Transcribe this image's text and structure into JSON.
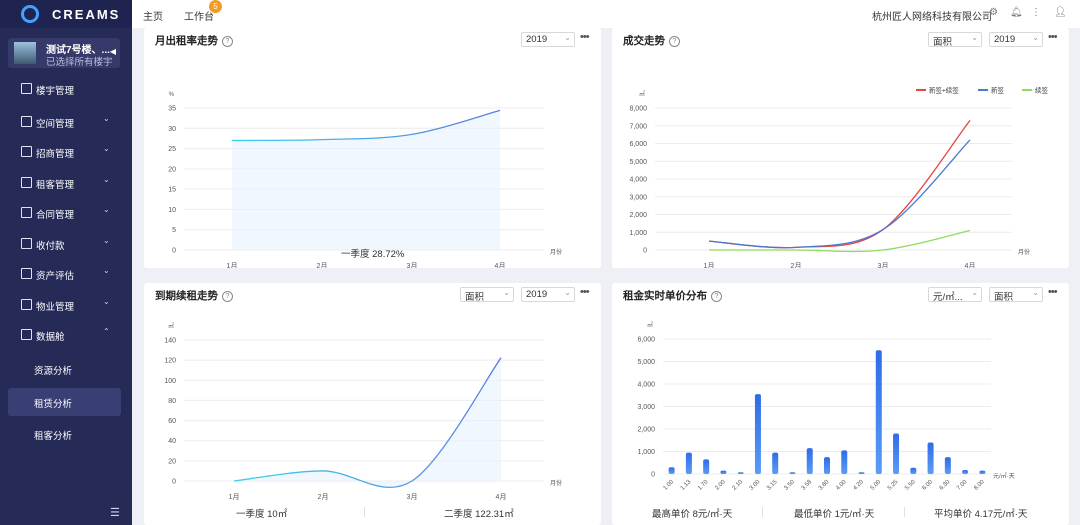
{
  "app": {
    "logo_text": "CREAMS"
  },
  "building": {
    "name": "测试7号楼、...",
    "subtitle": "已选择所有楼宇"
  },
  "sidebar": {
    "items": [
      {
        "label": "楼宇管理",
        "chevron": ""
      },
      {
        "label": "空间管理",
        "chevron": "⌄"
      },
      {
        "label": "招商管理",
        "chevron": "⌄"
      },
      {
        "label": "租客管理",
        "chevron": "⌄"
      },
      {
        "label": "合同管理",
        "chevron": "⌄"
      },
      {
        "label": "收付款",
        "chevron": "⌄"
      },
      {
        "label": "资产评估",
        "chevron": "⌄"
      },
      {
        "label": "物业管理",
        "chevron": "⌄"
      },
      {
        "label": "数据舱",
        "chevron": "⌃"
      }
    ],
    "sub_items": [
      {
        "label": "资源分析"
      },
      {
        "label": "租赁分析"
      },
      {
        "label": "租客分析"
      }
    ]
  },
  "topbar": {
    "home": "主页",
    "workbench": "工作台",
    "badge": "5",
    "company": "杭州匠人网络科技有限公司"
  },
  "cards": {
    "occupancy": {
      "title": "月出租率走势",
      "year": "2019",
      "summary": "一季度 28.72%"
    },
    "deals": {
      "title": "成交走势",
      "unit_select": "面积",
      "year": "2019"
    },
    "renewal": {
      "title": "到期续租走势",
      "unit_select": "面积",
      "year": "2019",
      "summary_q1": "一季度 10㎡",
      "summary_q2": "二季度 122.31㎡"
    },
    "price": {
      "title": "租金实时单价分布",
      "price_unit_select": "元/㎡...",
      "unit_select": "面积",
      "max": "最高单价 8元/㎡·天",
      "min": "最低单价 1元/㎡·天",
      "avg": "平均单价 4.17元/㎡·天"
    }
  },
  "chart_data": [
    {
      "type": "line",
      "title": "月出租率走势",
      "x": [
        "1月",
        "2月",
        "3月",
        "4月"
      ],
      "xlabel": "月份",
      "ylabel": "%",
      "yticks": [
        "0",
        "5",
        "10",
        "15",
        "20",
        "25",
        "30",
        "35"
      ],
      "ylim": [
        0,
        35
      ],
      "series": [
        {
          "values": [
            27,
            27.2,
            28.5,
            34.4
          ]
        }
      ],
      "grid": true
    },
    {
      "type": "line",
      "title": "成交走势",
      "x": [
        "1月",
        "2月",
        "3月",
        "4月"
      ],
      "xlabel": "月份",
      "ylabel": "㎡",
      "yticks": [
        "0",
        "1,000",
        "2,000",
        "3,000",
        "4,000",
        "5,000",
        "6,000",
        "7,000",
        "8,000"
      ],
      "ylim": [
        0,
        8000
      ],
      "legend_position": "top-right",
      "series": [
        {
          "name": "新签+续签",
          "color": "#e8453c",
          "values": [
            500,
            150,
            1150,
            7300
          ]
        },
        {
          "name": "新签",
          "color": "#4a78d6",
          "values": [
            500,
            150,
            1150,
            6200
          ]
        },
        {
          "name": "续签",
          "color": "#8fdb5e",
          "values": [
            0,
            0,
            0,
            1100
          ]
        }
      ],
      "grid": true
    },
    {
      "type": "line",
      "title": "到期续租走势",
      "x": [
        "1月",
        "2月",
        "3月",
        "4月"
      ],
      "xlabel": "月份",
      "ylabel": "㎡",
      "yticks": [
        "0",
        "20",
        "40",
        "60",
        "80",
        "100",
        "120",
        "140"
      ],
      "ylim": [
        0,
        140
      ],
      "series": [
        {
          "values": [
            0,
            10,
            0,
            122.31
          ]
        }
      ],
      "grid": true
    },
    {
      "type": "bar",
      "title": "租金实时单价分布",
      "categories": [
        "1.00",
        "1.13",
        "1.70",
        "2.00",
        "2.10",
        "3.00",
        "3.15",
        "3.50",
        "3.58",
        "3.80",
        "4.00",
        "4.20",
        "5.00",
        "5.25",
        "5.50",
        "6.00",
        "6.30",
        "7.00",
        "8.00"
      ],
      "values": [
        300,
        950,
        650,
        150,
        80,
        3550,
        950,
        80,
        1150,
        750,
        1050,
        80,
        5500,
        1800,
        280,
        1400,
        750,
        180,
        150
      ],
      "xlabel": "元/㎡·天",
      "ylabel": "㎡",
      "yticks": [
        "0",
        "1,000",
        "2,000",
        "3,000",
        "4,000",
        "5,000",
        "6,000"
      ],
      "ylim": [
        0,
        6000
      ],
      "grid": true
    }
  ]
}
